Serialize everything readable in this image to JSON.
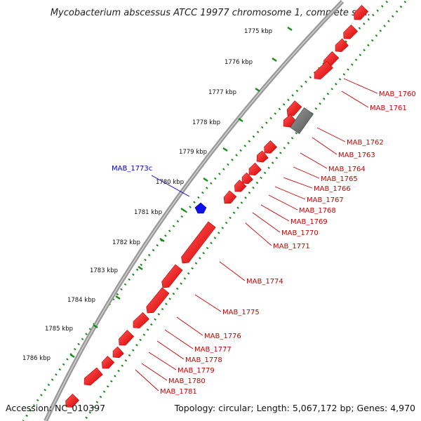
{
  "title": "Mycobacterium abscessus ATCC 19977 chromosome 1, complete se...",
  "footer": {
    "accession": "Accession: NC_010397",
    "topology": "Topology: circular; Length: 5,067,172 bp; Genes: 4,970"
  },
  "ticks": [
    "1775 kbp",
    "1776 kbp",
    "1777 kbp",
    "1778 kbp",
    "1779 kbp",
    "1780 kbp",
    "1781 kbp",
    "1782 kbp",
    "1783 kbp",
    "1784 kbp",
    "1785 kbp",
    "1786 kbp"
  ],
  "genes_forward": [
    "MAB_1773c"
  ],
  "genes_reverse": [
    "MAB_1760",
    "MAB_1761",
    "MAB_1762",
    "MAB_1763",
    "MAB_1764",
    "MAB_1765",
    "MAB_1766",
    "MAB_1767",
    "MAB_1768",
    "MAB_1769",
    "MAB_1770",
    "MAB_1771",
    "MAB_1774",
    "MAB_1775",
    "MAB_1776",
    "MAB_1777",
    "MAB_1778",
    "MAB_1779",
    "MAB_1780",
    "MAB_1781"
  ],
  "colors": {
    "reverse_gene": "#ff0000",
    "forward_gene": "#0000ff",
    "pseudo_gene": "#777777",
    "backbone": "#888888",
    "gc_track": "#1a8a1a"
  }
}
